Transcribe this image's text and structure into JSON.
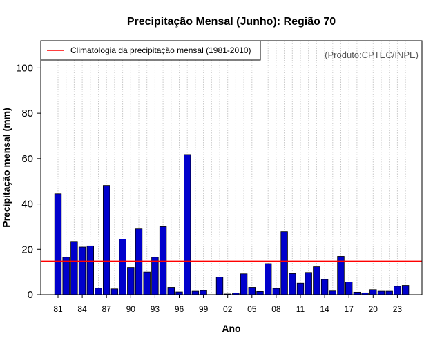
{
  "chart_data": {
    "type": "bar",
    "title": "Precipitação Mensal (Junho): Região 70",
    "xlabel": "Ano",
    "ylabel": "Precipitação mensal (mm)",
    "source_note": "(Produto:CPTEC/INPE)",
    "ylim": [
      0,
      112
    ],
    "yticks": [
      0,
      20,
      40,
      60,
      80,
      100
    ],
    "grid": true,
    "bar_color": "#0000cc",
    "categories": [
      "81",
      "82",
      "83",
      "84",
      "85",
      "86",
      "87",
      "88",
      "89",
      "90",
      "91",
      "92",
      "93",
      "94",
      "95",
      "96",
      "97",
      "98",
      "99",
      "00",
      "01",
      "02",
      "03",
      "04",
      "05",
      "06",
      "07",
      "08",
      "09",
      "10",
      "11",
      "12",
      "13",
      "14",
      "15",
      "16",
      "17",
      "18",
      "19",
      "20",
      "21",
      "22",
      "23",
      "24"
    ],
    "values": [
      44.5,
      16.5,
      23.5,
      21,
      21.5,
      2.8,
      48.2,
      2.5,
      24.5,
      12,
      29,
      10,
      16.5,
      30,
      3.2,
      1.2,
      61.8,
      1.5,
      1.8,
      0,
      7.7,
      0.3,
      0.7,
      9.2,
      3.2,
      1.4,
      13.7,
      2.7,
      27.8,
      9.3,
      5.1,
      9.8,
      12.3,
      6.7,
      1.6,
      16.9,
      5.6,
      1.1,
      0.8,
      2.2,
      1.5,
      1.5,
      3.7,
      4.1
    ],
    "xtick_labels": [
      "81",
      "84",
      "87",
      "90",
      "93",
      "96",
      "99",
      "02",
      "05",
      "08",
      "11",
      "14",
      "17",
      "20",
      "23"
    ],
    "reference_line": {
      "label": "Climatologia da precipitação mensal (1981-2010)",
      "value": 14.8,
      "color": "#ff0000"
    },
    "legend_position": "top-left"
  }
}
